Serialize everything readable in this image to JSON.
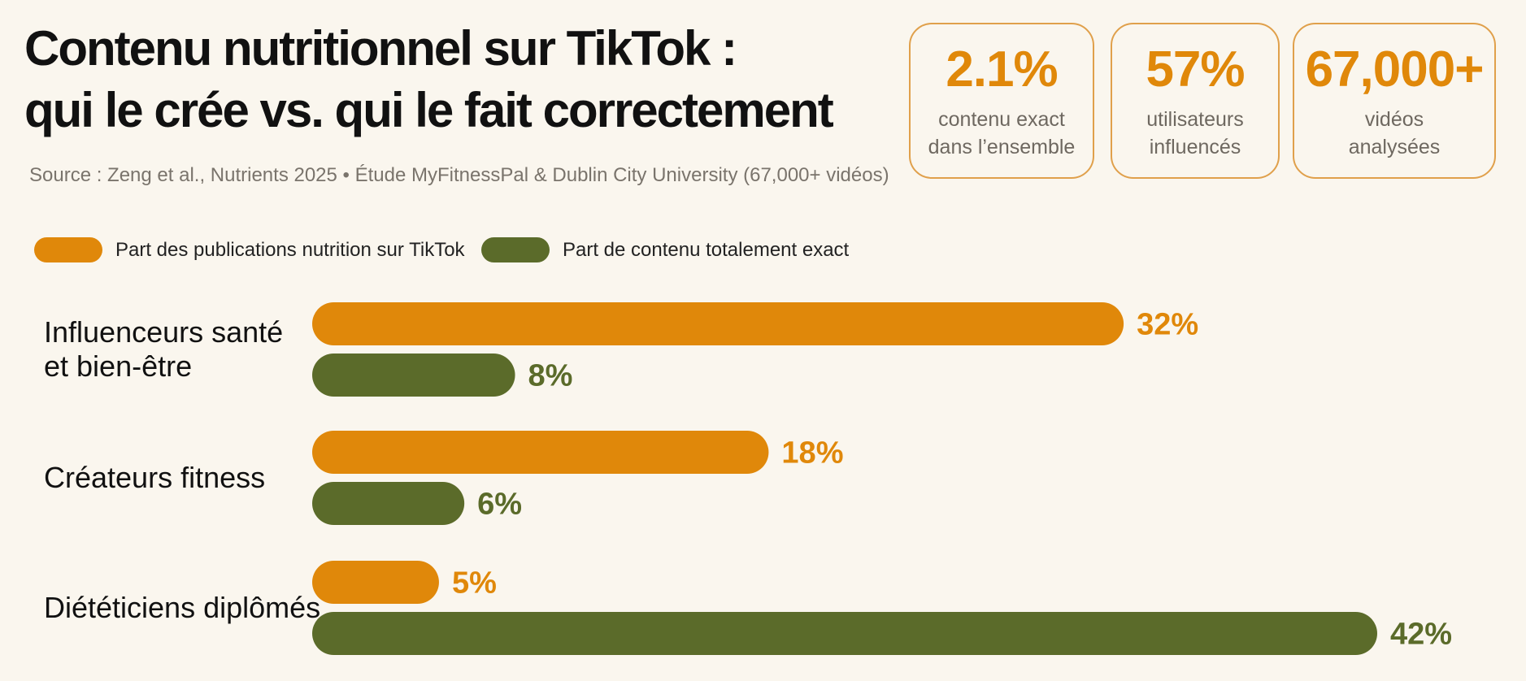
{
  "header": {
    "title_line1": "Contenu nutritionnel sur TikTok :",
    "title_line2": "qui le crée vs. qui le fait correctement",
    "source": "Source : Zeng et al., Nutrients 2025 • Étude MyFitnessPal & Dublin City University (67,000+ vidéos)"
  },
  "stats": [
    {
      "value": "2.1%",
      "label_line1": "contenu exact",
      "label_line2": "dans l’ensemble"
    },
    {
      "value": "57%",
      "label_line1": "utilisateurs",
      "label_line2": "influencés"
    },
    {
      "value": "67,000+",
      "label_line1": "vidéos",
      "label_line2": "analysées"
    }
  ],
  "colors": {
    "orange": "#e0880a",
    "olive": "#5b6b2a",
    "stat_border": "#e0a04b"
  },
  "chart_data": {
    "type": "bar",
    "orientation": "horizontal",
    "categories": [
      [
        "Influenceurs santé",
        "et bien-être"
      ],
      [
        "Créateurs fitness"
      ],
      [
        "Diététiciens diplômés"
      ]
    ],
    "series": [
      {
        "name": "Part des publications nutrition sur TikTok",
        "values": [
          32,
          18,
          5
        ],
        "labels": [
          "32%",
          "18%",
          "5%"
        ],
        "color": "#e0880a"
      },
      {
        "name": "Part de contenu totalement exact",
        "values": [
          8,
          6,
          42
        ],
        "labels": [
          "8%",
          "6%",
          "42%"
        ],
        "color": "#5b6b2a"
      }
    ],
    "xlim": [
      0,
      42
    ],
    "legend": "top-left",
    "grid": false
  }
}
